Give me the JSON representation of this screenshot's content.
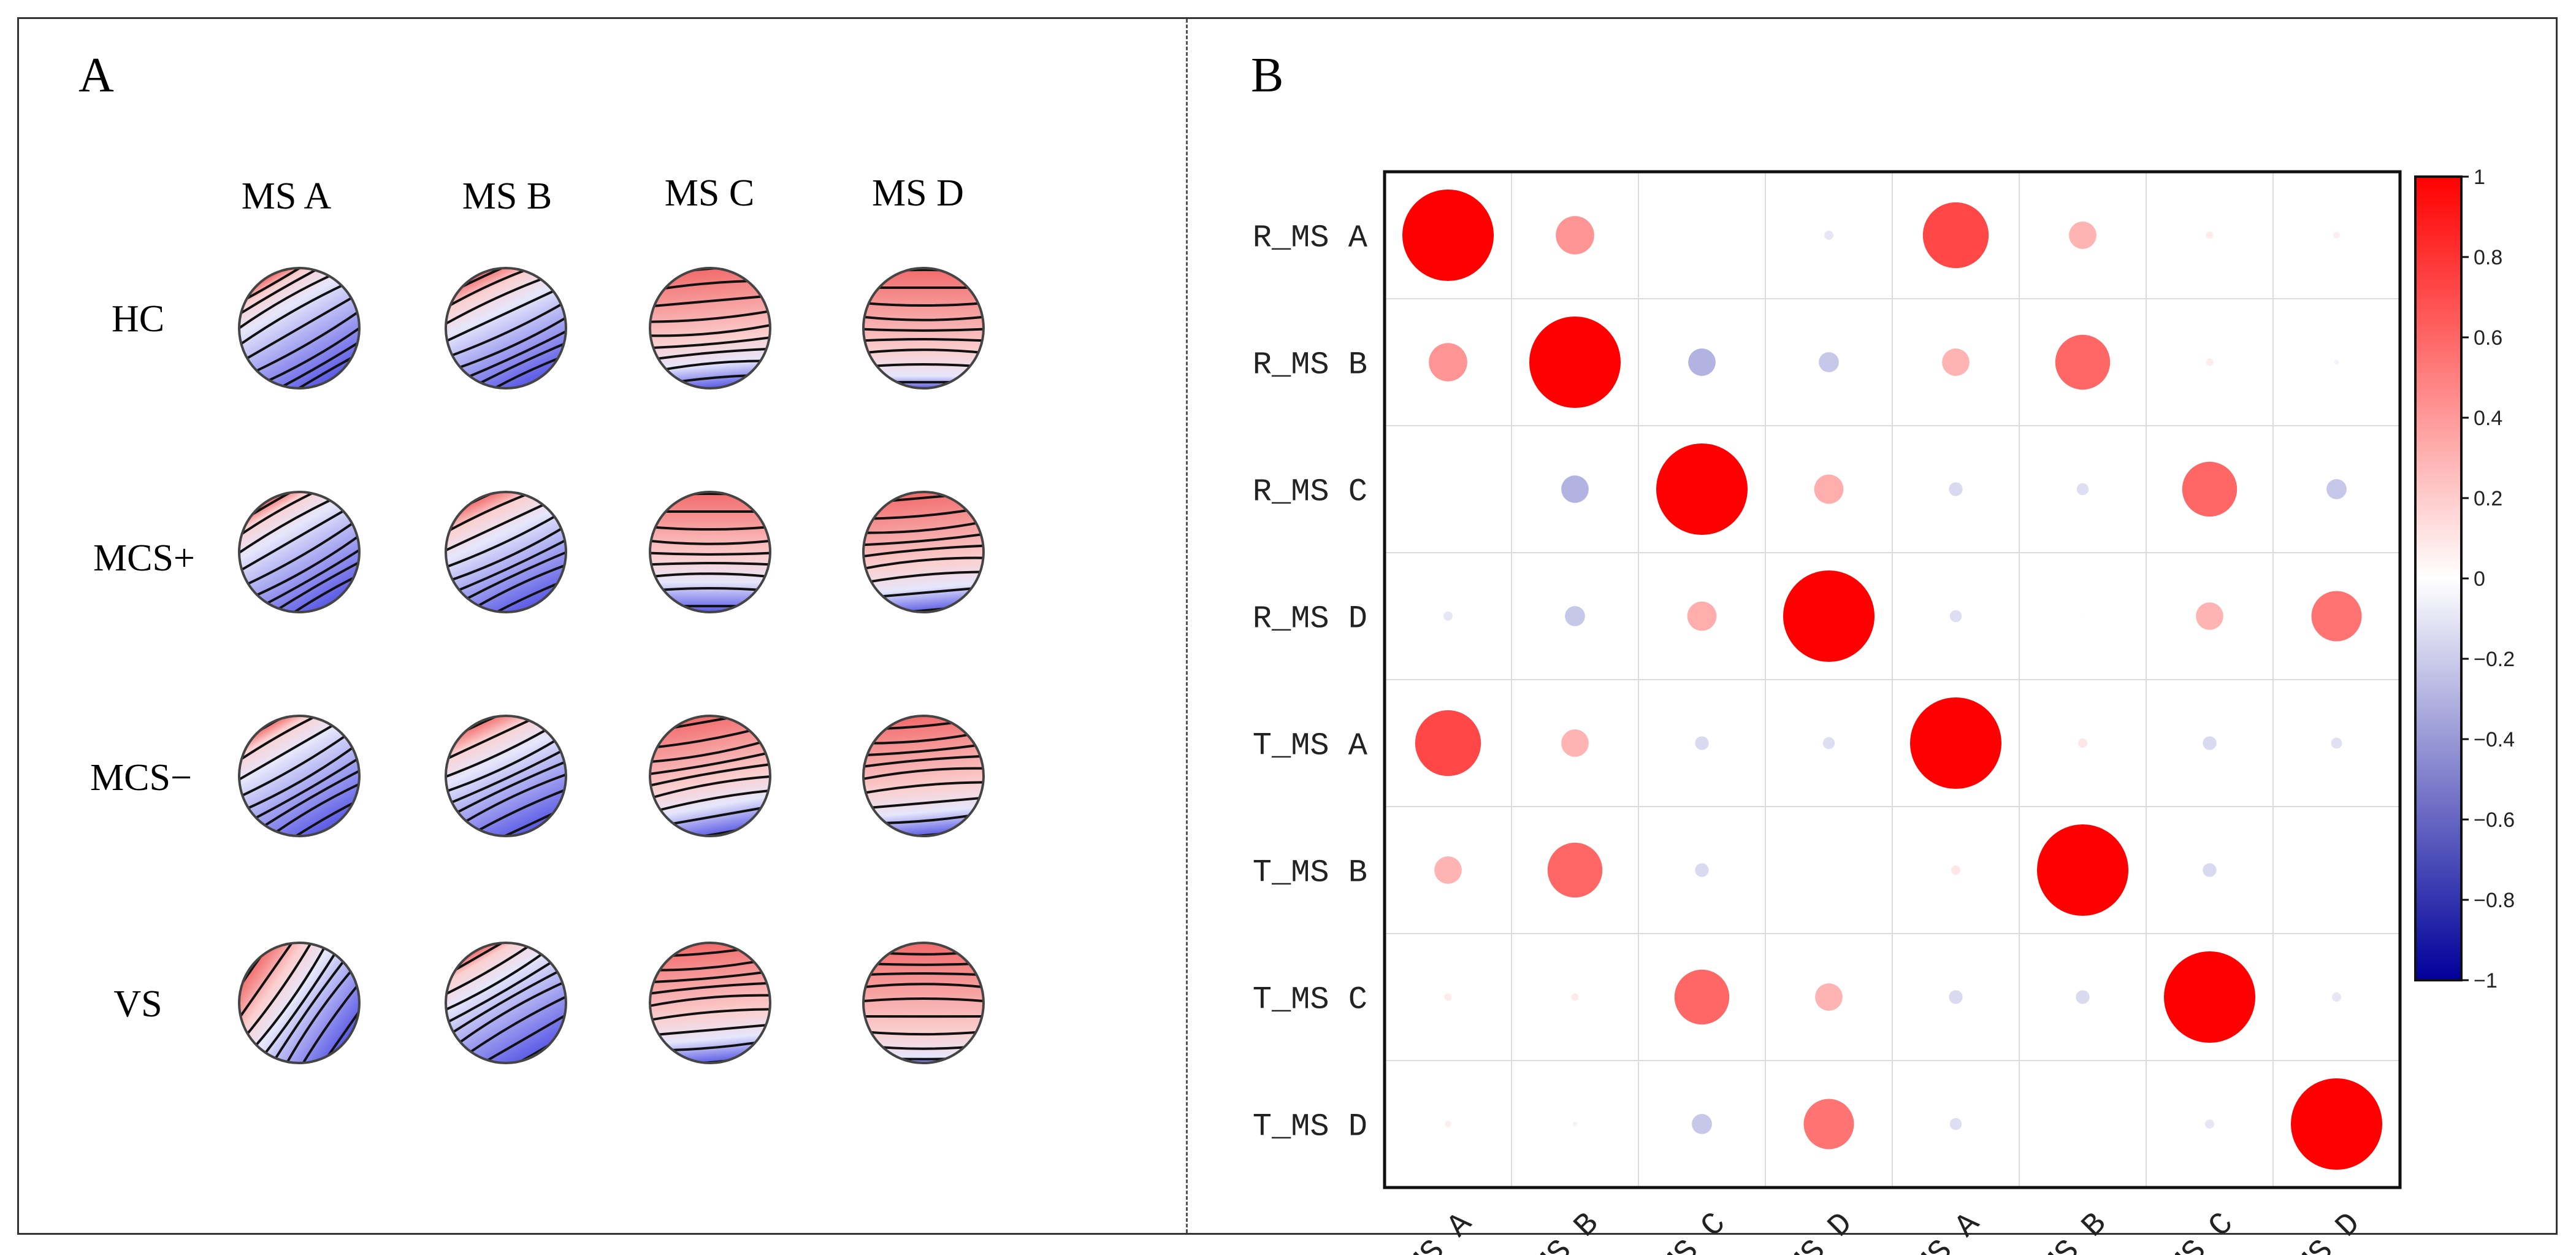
{
  "panel_a": {
    "label": "A",
    "columns": [
      "MS A",
      "MS B",
      "MS C",
      "MS D"
    ],
    "rows": [
      "HC",
      "MCS+",
      "MCS−",
      "VS"
    ],
    "maps": [
      [
        {
          "angle": 30,
          "center": 0.1
        },
        {
          "angle": 25,
          "center": 0.15
        },
        {
          "angle": 5,
          "center": 0.6
        },
        {
          "angle": 0,
          "center": 0.7
        }
      ],
      [
        {
          "angle": 30,
          "center": 0.1
        },
        {
          "angle": 25,
          "center": 0.15
        },
        {
          "angle": 0,
          "center": 0.55
        },
        {
          "angle": 5,
          "center": 0.6
        }
      ],
      [
        {
          "angle": 30,
          "center": 0.1
        },
        {
          "angle": 25,
          "center": 0.15
        },
        {
          "angle": 10,
          "center": 0.55
        },
        {
          "angle": 5,
          "center": 0.6
        }
      ],
      [
        {
          "angle": 55,
          "center": 0.25
        },
        {
          "angle": 30,
          "center": 0.1
        },
        {
          "angle": 5,
          "center": 0.6
        },
        {
          "angle": 0,
          "center": 0.75
        }
      ]
    ]
  },
  "chart_data": {
    "type": "heatmap",
    "panel_label": "B",
    "row_labels": [
      "R_MS A",
      "R_MS B",
      "R_MS C",
      "R_MS D",
      "T_MS A",
      "T_MS B",
      "T_MS C",
      "T_MS D"
    ],
    "col_labels": [
      "R_MS A",
      "R_MS B",
      "R_MS C",
      "R_MS D",
      "T_MS A",
      "T_MS B",
      "T_MS C",
      "T_MS D"
    ],
    "values": [
      [
        1.0,
        0.42,
        0.0,
        -0.1,
        0.72,
        0.3,
        0.08,
        0.07
      ],
      [
        0.42,
        1.0,
        -0.3,
        -0.22,
        0.3,
        0.6,
        0.08,
        -0.05
      ],
      [
        0.0,
        -0.3,
        1.0,
        0.32,
        -0.15,
        -0.13,
        0.6,
        -0.22
      ],
      [
        -0.1,
        -0.22,
        0.32,
        1.0,
        -0.13,
        0.02,
        0.3,
        0.55
      ],
      [
        0.72,
        0.3,
        -0.15,
        -0.13,
        1.0,
        0.1,
        -0.15,
        -0.12
      ],
      [
        0.3,
        0.6,
        -0.15,
        0.01,
        0.1,
        1.0,
        -0.15,
        0.0
      ],
      [
        0.08,
        0.08,
        0.6,
        0.3,
        -0.15,
        -0.15,
        1.0,
        -0.1
      ],
      [
        0.07,
        -0.05,
        -0.22,
        0.55,
        -0.13,
        0.0,
        -0.1,
        1.0
      ]
    ],
    "colorbar": {
      "range": [
        -1,
        1
      ],
      "ticks": [
        "1",
        "0.8",
        "0.6",
        "0.4",
        "0.2",
        "0",
        "−0.2",
        "−0.4",
        "−0.6",
        "−0.8",
        "−1"
      ],
      "colors": {
        "high": "#ff0000",
        "mid": "#ffffff",
        "low": "#00009a"
      }
    }
  }
}
